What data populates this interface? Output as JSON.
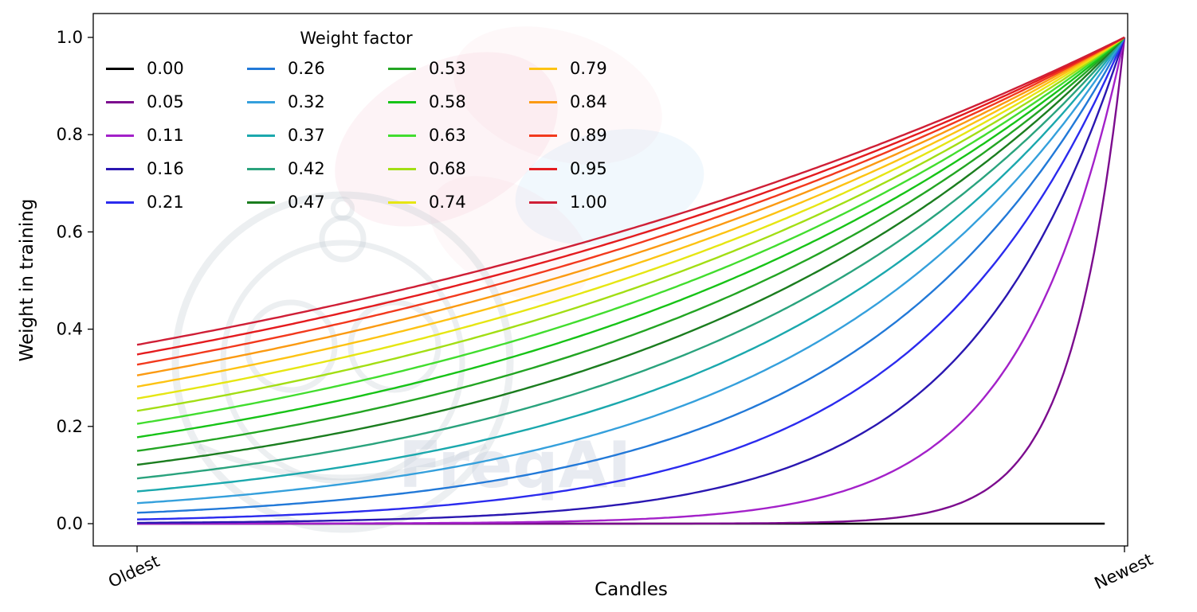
{
  "chart_data": {
    "type": "line",
    "title": "",
    "xlabel": "Candles",
    "ylabel": "Weight in training",
    "x_tick_labels": [
      "Oldest",
      "Newest"
    ],
    "y_ticks": [
      0.0,
      0.2,
      0.4,
      0.6,
      0.8,
      1.0
    ],
    "y_tick_labels": [
      "0.0",
      "0.2",
      "0.4",
      "0.6",
      "0.8",
      "1.0"
    ],
    "x_range": [
      0,
      1
    ],
    "y_range": [
      0,
      1
    ],
    "grid": false,
    "legend": {
      "title": "Weight factor",
      "columns": 4,
      "rows": 5,
      "position": "upper left",
      "frame": false
    },
    "formula": "weight(x) = exp(-(1 - x) / weight_factor), x from Oldest(0) to Newest(1); weight_factor 0.00 stays at 0",
    "series": [
      {
        "label": "0.00",
        "w": 0.0,
        "color": "#000000"
      },
      {
        "label": "0.05",
        "w": 0.0526,
        "color": "#7c0c8e"
      },
      {
        "label": "0.11",
        "w": 0.1053,
        "color": "#a321c9"
      },
      {
        "label": "0.16",
        "w": 0.1579,
        "color": "#2a17b1"
      },
      {
        "label": "0.21",
        "w": 0.2105,
        "color": "#2b2bee"
      },
      {
        "label": "0.26",
        "w": 0.2632,
        "color": "#2279d8"
      },
      {
        "label": "0.32",
        "w": 0.3158,
        "color": "#35a0dc"
      },
      {
        "label": "0.37",
        "w": 0.3684,
        "color": "#1ba8ad"
      },
      {
        "label": "0.42",
        "w": 0.4211,
        "color": "#2aa37d"
      },
      {
        "label": "0.47",
        "w": 0.4737,
        "color": "#1b7d1f"
      },
      {
        "label": "0.53",
        "w": 0.5263,
        "color": "#23a523"
      },
      {
        "label": "0.58",
        "w": 0.5789,
        "color": "#17c317"
      },
      {
        "label": "0.63",
        "w": 0.6316,
        "color": "#42dd2f"
      },
      {
        "label": "0.68",
        "w": 0.6842,
        "color": "#a2de14"
      },
      {
        "label": "0.74",
        "w": 0.7368,
        "color": "#e6e613"
      },
      {
        "label": "0.79",
        "w": 0.7895,
        "color": "#fdc313"
      },
      {
        "label": "0.84",
        "w": 0.8421,
        "color": "#fb9a12"
      },
      {
        "label": "0.89",
        "w": 0.8947,
        "color": "#f2391d"
      },
      {
        "label": "0.95",
        "w": 0.9474,
        "color": "#e41b1e"
      },
      {
        "label": "1.00",
        "w": 1.0,
        "color": "#cf1f36"
      }
    ],
    "watermark": {
      "text": "FreqAI"
    }
  }
}
